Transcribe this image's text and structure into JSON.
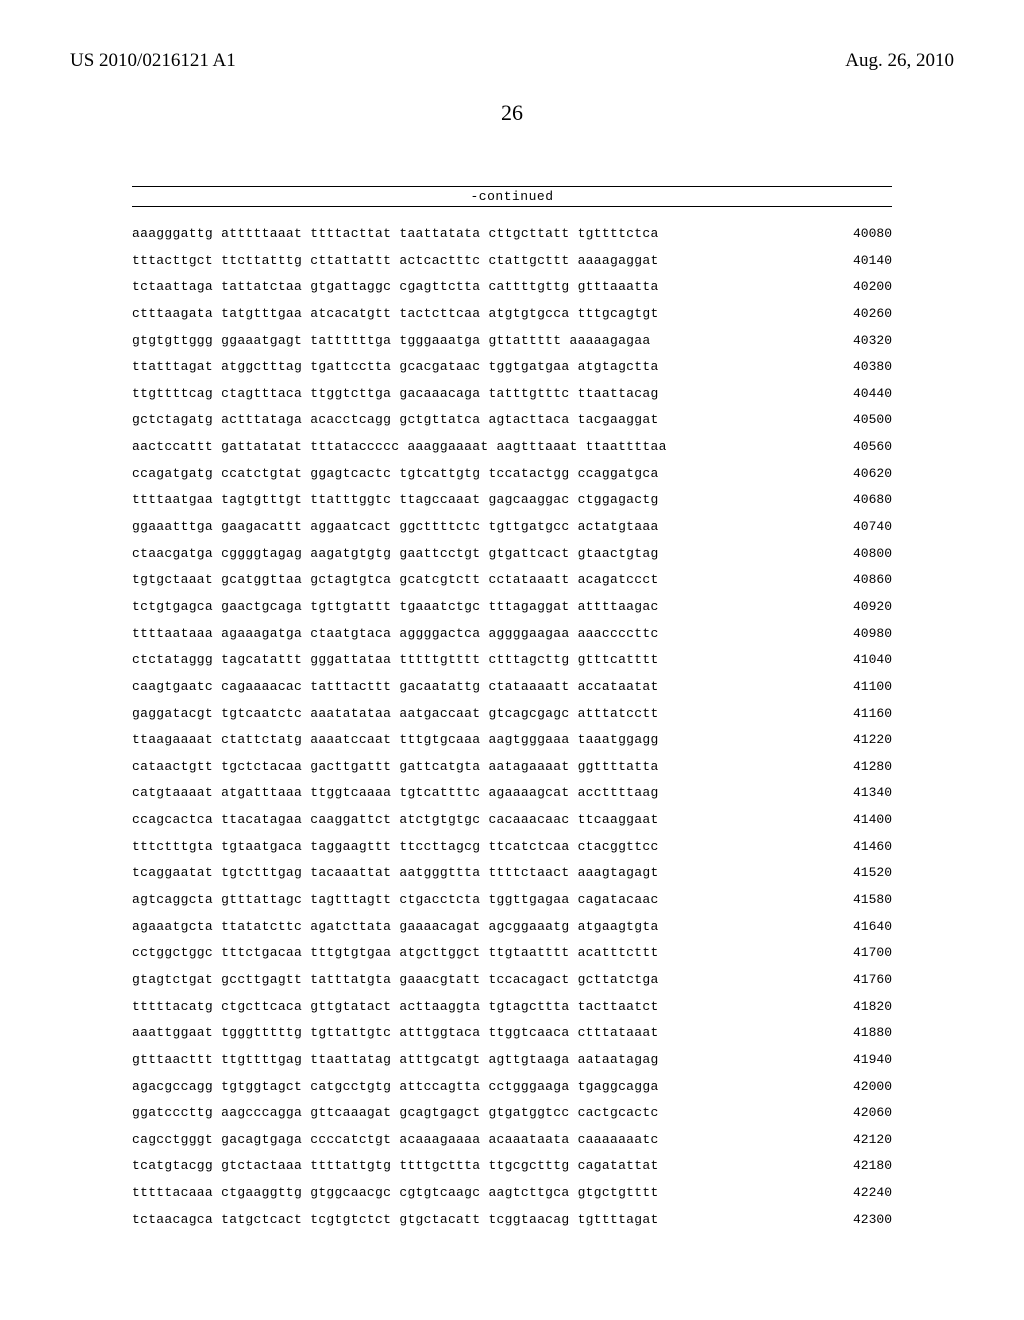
{
  "header": {
    "publication_number": "US 2010/0216121 A1",
    "publication_date": "Aug. 26, 2010",
    "page_number": "26"
  },
  "continued_label": "-continued",
  "sequence": {
    "font_family": "Courier New",
    "font_size_pt": 10,
    "background_color": "#ffffff",
    "text_color": "#000000",
    "rows": [
      {
        "seq": "aaagggattg atttttaaat ttttacttat taattatata cttgcttatt tgttttctca",
        "pos": "40080"
      },
      {
        "seq": "tttacttgct ttcttatttg cttattattt actcactttc ctattgcttt aaaagaggat",
        "pos": "40140"
      },
      {
        "seq": "tctaattaga tattatctaa gtgattaggc cgagttctta cattttgttg gtttaaatta",
        "pos": "40200"
      },
      {
        "seq": "ctttaagata tatgtttgaa atcacatgtt tactcttcaa atgtgtgcca tttgcagtgt",
        "pos": "40260"
      },
      {
        "seq": "gtgtgttggg ggaaatgagt tattttttga tgggaaatga gttattttt aaaaagagaa",
        "pos": "40320"
      },
      {
        "seq": "ttatttagat atggctttag tgattcctta gcacgataac tggtgatgaa atgtagctta",
        "pos": "40380"
      },
      {
        "seq": "ttgttttcag ctagtttaca ttggtcttga gacaaacaga tatttgtttc ttaattacag",
        "pos": "40440"
      },
      {
        "seq": "gctctagatg actttataga acacctcagg gctgttatca agtacttaca tacgaaggat",
        "pos": "40500"
      },
      {
        "seq": "aactccattt gattatatat tttataccccc aaaggaaaat aagtttaaat ttaattttaa",
        "pos": "40560"
      },
      {
        "seq": "ccagatgatg ccatctgtat ggagtcactc tgtcattgtg tccatactgg ccaggatgca",
        "pos": "40620"
      },
      {
        "seq": "ttttaatgaa tagtgtttgt ttatttggtc ttagccaaat gagcaaggac ctggagactg",
        "pos": "40680"
      },
      {
        "seq": "ggaaatttga gaagacattt aggaatcact ggcttttctc tgttgatgcc actatgtaaa",
        "pos": "40740"
      },
      {
        "seq": "ctaacgatga cggggtagag aagatgtgtg gaattcctgt gtgattcact gtaactgtag",
        "pos": "40800"
      },
      {
        "seq": "tgtgctaaat gcatggttaa gctagtgtca gcatcgtctt cctataaatt acagatccct",
        "pos": "40860"
      },
      {
        "seq": "tctgtgagca gaactgcaga tgttgtattt tgaaatctgc tttagaggat attttaagac",
        "pos": "40920"
      },
      {
        "seq": "ttttaataaa agaaagatga ctaatgtaca aggggactca aggggaagaa aaaccccttc",
        "pos": "40980"
      },
      {
        "seq": "ctctataggg tagcatattt gggattataa tttttgtttt ctttagcttg gtttcatttt",
        "pos": "41040"
      },
      {
        "seq": "caagtgaatc cagaaaacac tatttacttt gacaatattg ctataaaatt accataatat",
        "pos": "41100"
      },
      {
        "seq": "gaggatacgt tgtcaatctc aaatatataa aatgaccaat gtcagcgagc atttatcctt",
        "pos": "41160"
      },
      {
        "seq": "ttaagaaaat ctattctatg aaaatccaat tttgtgcaaa aagtgggaaa taaatggagg",
        "pos": "41220"
      },
      {
        "seq": "cataactgtt tgctctacaa gacttgattt gattcatgta aatagaaaat ggttttatta",
        "pos": "41280"
      },
      {
        "seq": "catgtaaaat atgatttaaa ttggtcaaaa tgtcattttc agaaaagcat accttttaag",
        "pos": "41340"
      },
      {
        "seq": "ccagcactca ttacatagaa caaggattct atctgtgtgc cacaaacaac ttcaaggaat",
        "pos": "41400"
      },
      {
        "seq": "tttctttgta tgtaatgaca taggaagttt ttccttagcg ttcatctcaa ctacggttcc",
        "pos": "41460"
      },
      {
        "seq": "tcaggaatat tgtctttgag tacaaattat aatgggttta ttttctaact aaagtagagt",
        "pos": "41520"
      },
      {
        "seq": "agtcaggcta gtttattagc tagtttagtt ctgacctcta tggttgagaa cagatacaac",
        "pos": "41580"
      },
      {
        "seq": "agaaatgcta ttatatcttc agatcttata gaaaacagat agcggaaatg atgaagtgta",
        "pos": "41640"
      },
      {
        "seq": "cctggctggc tttctgacaa tttgtgtgaa atgcttggct ttgtaatttt acatttcttt",
        "pos": "41700"
      },
      {
        "seq": "gtagtctgat gccttgagtt tatttatgta gaaacgtatt tccacagact gcttatctga",
        "pos": "41760"
      },
      {
        "seq": "tttttacatg ctgcttcaca gttgtatact acttaaggta tgtagcttta tacttaatct",
        "pos": "41820"
      },
      {
        "seq": "aaattggaat tgggtttttg tgttattgtc atttggtaca ttggtcaaca ctttataaat",
        "pos": "41880"
      },
      {
        "seq": "gtttaacttt ttgttttgag ttaattatag atttgcatgt agttgtaaga aataatagag",
        "pos": "41940"
      },
      {
        "seq": "agacgccagg tgtggtagct catgcctgtg attccagtta cctgggaaga tgaggcagga",
        "pos": "42000"
      },
      {
        "seq": "ggatcccttg aagcccagga gttcaaagat gcagtgagct gtgatggtcc cactgcactc",
        "pos": "42060"
      },
      {
        "seq": "cagcctgggt gacagtgaga ccccatctgt acaaagaaaa acaaataata caaaaaaatc",
        "pos": "42120"
      },
      {
        "seq": "tcatgtacgg gtctactaaa ttttattgtg ttttgcttta ttgcgctttg cagatattat",
        "pos": "42180"
      },
      {
        "seq": "tttttacaaa ctgaaggttg gtggcaacgc cgtgtcaagc aagtcttgca gtgctgtttt",
        "pos": "42240"
      },
      {
        "seq": "tctaacagca tatgctcact tcgtgtctct gtgctacatt tcggtaacag tgttttagat",
        "pos": "42300"
      }
    ]
  }
}
